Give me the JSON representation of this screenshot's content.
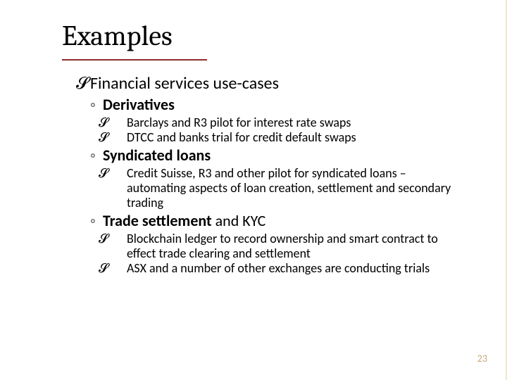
{
  "colors": {
    "title_underline": "#8b2e2e",
    "page_number": "#c6a77a",
    "accent_bar": "#efe6d6",
    "bullet_circle": "#5a5a5a",
    "text": "#000000",
    "background": "#ffffff"
  },
  "typography": {
    "title_font": "Cambria",
    "body_font": "Calibri",
    "title_size_pt": 40,
    "lvl1_size_pt": 24,
    "lvl2_size_pt": 22,
    "lvl3_size_pt": 18,
    "pagenum_size_pt": 14
  },
  "slide": {
    "title": "Examples",
    "page_number": "23",
    "main_bullet": "Financial services use-cases",
    "sections": [
      {
        "heading_bold": "Derivatives",
        "heading_plain": "",
        "items": [
          "Barclays and R3 pilot for interest rate swaps",
          "DTCC and banks trial for credit default swaps"
        ]
      },
      {
        "heading_bold": "Syndicated loans",
        "heading_plain": "",
        "items": [
          "Credit Suisse, R3 and other pilot for syndicated loans – automating aspects of loan creation, settlement and secondary trading"
        ]
      },
      {
        "heading_bold": "Trade settlement",
        "heading_plain": " and KYC",
        "items": [
          "Blockchain ledger to record ownership and smart contract to effect trade clearing and settlement",
          "ASX and a number of other exchanges are conducting trials"
        ]
      }
    ]
  }
}
